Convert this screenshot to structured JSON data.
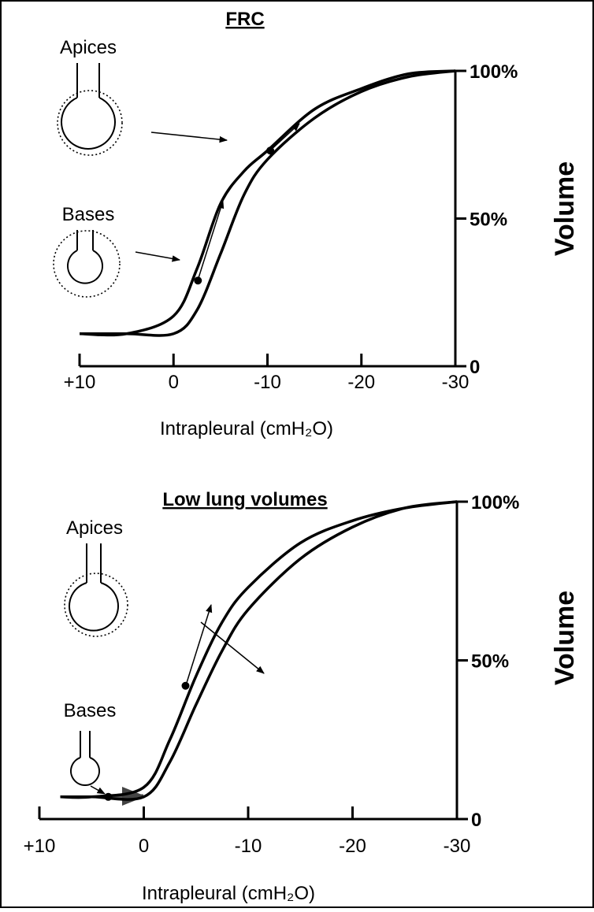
{
  "chart_data": [
    {
      "type": "line",
      "title": "FRC",
      "x_label": "Intrapleural (cmH₂O)",
      "y_label": "Volume",
      "annotations": [
        "Apices",
        "Bases"
      ],
      "x": [
        10,
        5,
        0,
        -2.5,
        -5,
        -7.5,
        -10,
        -15,
        -20,
        -25,
        -30
      ],
      "series": [
        {
          "color": "#000000",
          "values": [
            11,
            11,
            17,
            33,
            55,
            66,
            73,
            87,
            94,
            99,
            100
          ]
        },
        {
          "color": "#000000",
          "values": [
            11,
            11,
            11,
            19,
            38,
            58,
            70,
            84,
            93,
            98,
            100
          ]
        }
      ],
      "points": {
        "x": [
          -10.3,
          -2.6
        ],
        "y": [
          73,
          29
        ]
      },
      "xlim": [
        10,
        -30
      ],
      "xticks": [
        {
          "value": 10,
          "label": "+10"
        },
        0,
        -10,
        -20,
        -30
      ],
      "ylim": [
        0,
        100
      ],
      "yticks": [
        0,
        {
          "value": 50,
          "label": "50%"
        },
        {
          "value": 100,
          "label": "100%"
        }
      ]
    },
    {
      "type": "line",
      "title": "Low lung volumes",
      "x_label": "Intrapleural (cmH₂O)",
      "y_label": "Volume",
      "annotations": [
        "Apices",
        "Bases"
      ],
      "x": [
        8,
        5,
        0,
        -2.5,
        -5,
        -7.5,
        -10,
        -15,
        -20,
        -25,
        -30
      ],
      "series": [
        {
          "color": "#000000",
          "values": [
            7,
            7,
            10,
            25,
            45,
            62,
            73,
            87,
            94,
            98,
            100
          ]
        },
        {
          "color": "#000000",
          "values": [
            7,
            7,
            7,
            18,
            36,
            53,
            66,
            82,
            92,
            98,
            100
          ]
        }
      ],
      "points": {
        "x": [
          -4,
          3.4
        ],
        "y": [
          42,
          7
        ]
      },
      "xlim": [
        10,
        -30
      ],
      "xticks": [
        {
          "value": 10,
          "label": "+10"
        },
        0,
        -10,
        -20,
        -30
      ],
      "ylim": [
        0,
        100
      ],
      "yticks": [
        0,
        {
          "value": 50,
          "label": "50%"
        },
        {
          "value": 100,
          "label": "100%"
        }
      ]
    }
  ]
}
